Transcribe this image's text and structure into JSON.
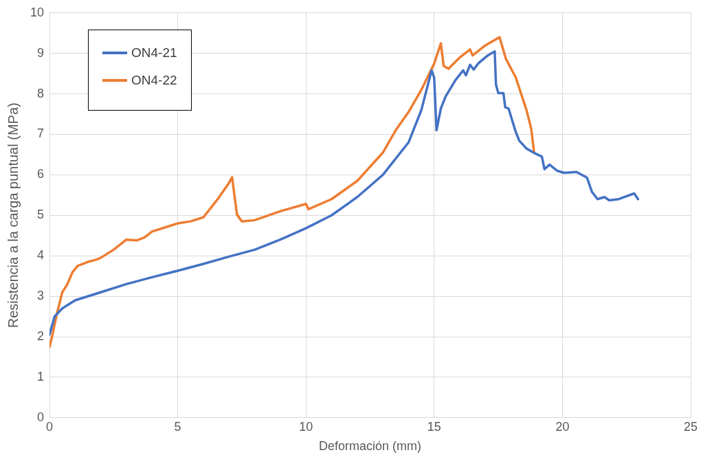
{
  "chart_data": {
    "type": "line",
    "xlabel": "Deformación (mm)",
    "ylabel": "Resistencia a la carga puntual (MPa)",
    "xlim": [
      0,
      25
    ],
    "xticks": [
      0,
      5,
      10,
      15,
      20,
      25
    ],
    "ylim": [
      0,
      10
    ],
    "yticks": [
      0,
      1,
      2,
      3,
      4,
      5,
      6,
      7,
      8,
      9,
      10
    ],
    "grid": true,
    "legend": "top left",
    "marker": "none",
    "line_style": "solid",
    "series": [
      {
        "name": "ON4-21",
        "color": "#4472c4",
        "x": [
          0,
          0.2,
          0.5,
          1,
          2,
          3,
          4,
          5,
          6,
          7,
          8,
          9,
          10,
          11,
          12,
          13,
          14,
          14.5,
          14.9,
          15.0,
          15.09,
          15.26,
          15.45,
          15.83,
          16.13,
          16.24,
          16.4,
          16.54,
          16.73,
          17.09,
          17.36,
          17.41,
          17.5,
          17.7,
          17.77,
          17.9,
          18.18,
          18.32,
          18.6,
          18.9,
          19.2,
          19.3,
          19.5,
          19.8,
          20.06,
          20.55,
          20.96,
          21.15,
          21.37,
          21.64,
          21.83,
          22.2,
          22.4,
          22.8,
          22.95
        ],
        "values": [
          2.05,
          2.5,
          2.7,
          2.9,
          3.1,
          3.3,
          3.47,
          3.63,
          3.8,
          3.98,
          4.15,
          4.4,
          4.68,
          5.0,
          5.45,
          6.0,
          6.8,
          7.6,
          8.58,
          8.4,
          7.1,
          7.64,
          7.94,
          8.34,
          8.58,
          8.46,
          8.72,
          8.6,
          8.76,
          8.95,
          9.05,
          8.23,
          8.02,
          8.02,
          7.67,
          7.64,
          7.06,
          6.84,
          6.65,
          6.54,
          6.45,
          6.14,
          6.25,
          6.1,
          6.05,
          6.07,
          5.93,
          5.58,
          5.4,
          5.45,
          5.37,
          5.4,
          5.45,
          5.54,
          5.4
        ]
      },
      {
        "name": "ON4-22",
        "color": "#ed7d31",
        "x": [
          0,
          0.1,
          0.3,
          0.5,
          0.7,
          0.9,
          1.1,
          1.5,
          1.8,
          2.0,
          2.5,
          3,
          3.4,
          3.7,
          4.0,
          4.5,
          5,
          5.5,
          6,
          6.5,
          7.0,
          7.12,
          7.31,
          7.5,
          8,
          9,
          10,
          10.1,
          11,
          12,
          13,
          13.5,
          14,
          14.5,
          15,
          15.26,
          15.37,
          15.56,
          16,
          16.4,
          16.5,
          17,
          17.55,
          17.8,
          18.18,
          18.6,
          18.78,
          18.9
        ],
        "values": [
          1.75,
          2.0,
          2.6,
          3.1,
          3.3,
          3.6,
          3.75,
          3.85,
          3.9,
          3.95,
          4.15,
          4.4,
          4.38,
          4.45,
          4.6,
          4.7,
          4.8,
          4.85,
          4.95,
          5.35,
          5.8,
          5.94,
          5.02,
          4.85,
          4.88,
          5.1,
          5.28,
          5.15,
          5.4,
          5.85,
          6.55,
          7.1,
          7.55,
          8.1,
          8.75,
          9.25,
          8.69,
          8.62,
          8.9,
          9.1,
          8.95,
          9.2,
          9.4,
          8.86,
          8.41,
          7.6,
          7.15,
          6.54
        ]
      }
    ]
  }
}
